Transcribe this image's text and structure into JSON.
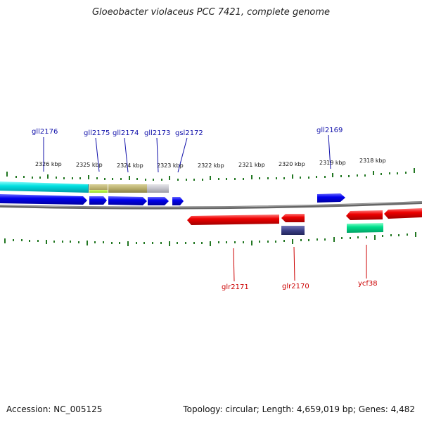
{
  "title": "Gloeobacter violaceus PCC 7421, complete genome",
  "footer": {
    "accession": "Accession: NC_005125",
    "summary": "Topology: circular; Length: 4,659,019 bp; Genes: 4,482"
  },
  "colors": {
    "forward_gene": "#0000ee",
    "forward_label": "#1010aa",
    "reverse_gene": "#ee0000",
    "reverse_label": "#cc0000",
    "cyan_feature": "#00d8d8",
    "olive_feature": "#b8b070",
    "grey_feature": "#c0c0c8",
    "green_feature": "#00dd88",
    "navy_feature": "#404488",
    "tick": "#227722",
    "backbone": "#777777"
  },
  "scale_labels": [
    "2326 kbp",
    "2325 kbp",
    "2324 kbp",
    "2323 kbp",
    "2322 kbp",
    "2321 kbp",
    "2320 kbp",
    "2319 kbp",
    "2318 kbp"
  ],
  "forward_gene_labels": [
    "gll2176",
    "gll2175",
    "gll2174",
    "gll2173",
    "gsl2172",
    "gll2169"
  ],
  "reverse_gene_labels": [
    "glr2171",
    "glr2170",
    "ycf38"
  ]
}
